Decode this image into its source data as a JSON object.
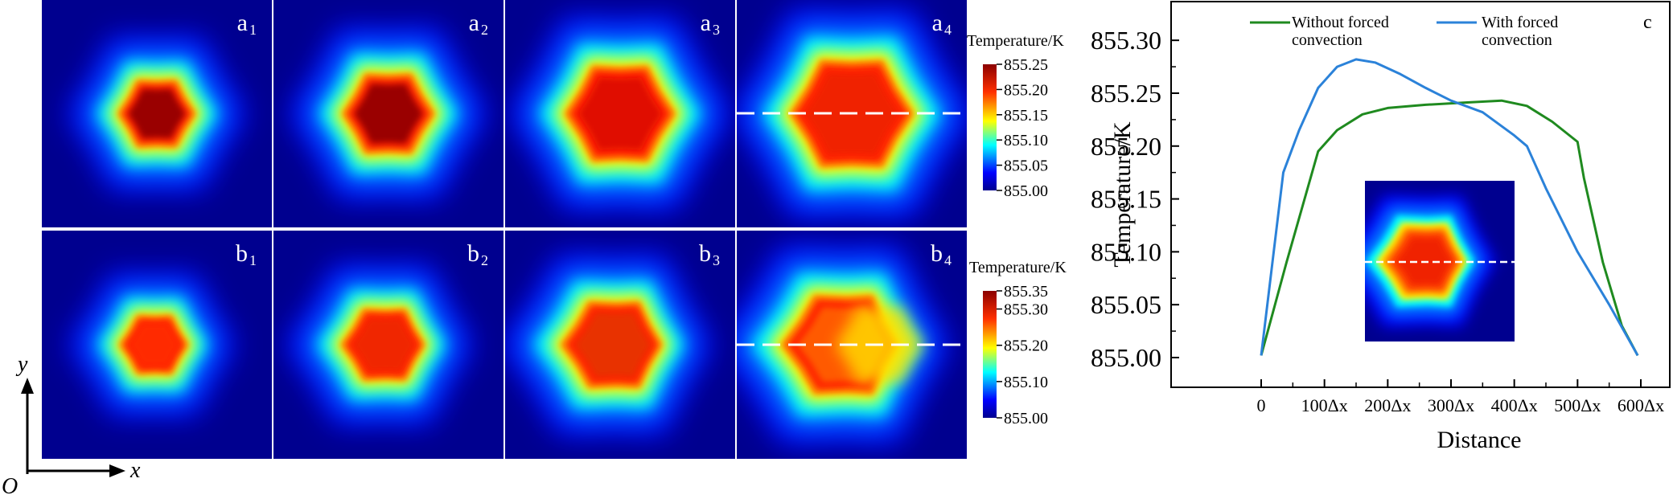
{
  "panels": {
    "row_a": [
      {
        "letter": "a",
        "index": "1",
        "shape": "hexstar",
        "scale": 0.55,
        "skew": 0
      },
      {
        "letter": "a",
        "index": "2",
        "shape": "hexstar",
        "scale": 0.75,
        "skew": 0
      },
      {
        "letter": "a",
        "index": "3",
        "shape": "hexstar",
        "scale": 1.0,
        "skew": 0
      },
      {
        "letter": "a",
        "index": "4",
        "shape": "hexstar",
        "scale": 1.18,
        "skew": 0
      }
    ],
    "row_b": [
      {
        "letter": "b",
        "index": "1",
        "shape": "hexstar",
        "scale": 0.42,
        "skew": 0.15
      },
      {
        "letter": "b",
        "index": "2",
        "shape": "hexstar",
        "scale": 0.62,
        "skew": 0.25
      },
      {
        "letter": "b",
        "index": "3",
        "shape": "hexstar",
        "scale": 0.85,
        "skew": 0.35
      },
      {
        "letter": "b",
        "index": "4",
        "shape": "hexstar",
        "scale": 1.05,
        "skew": 0.45
      }
    ]
  },
  "colorbar_a": {
    "title": "Temperature/K",
    "min": 855.0,
    "max": 855.25,
    "ticks": [
      "855.25",
      "855.20",
      "855.15",
      "855.10",
      "855.05",
      "855.00"
    ]
  },
  "colorbar_b": {
    "title": "Temperature/K",
    "min": 855.0,
    "max": 855.35,
    "ticks": [
      "855.35",
      "855.30",
      "855.20",
      "855.10",
      "855.00"
    ],
    "tick_values": [
      855.35,
      855.3,
      855.2,
      855.1,
      855.0
    ]
  },
  "axes_indicator": {
    "origin": "O",
    "x": "x",
    "y": "y"
  },
  "chart_data": {
    "type": "line",
    "panel_label": "c",
    "xlabel": "Distance",
    "ylabel": "Temperature/K",
    "xlim": [
      0,
      600
    ],
    "ylim": [
      855.0,
      855.31
    ],
    "x_ticks": [
      0,
      100,
      200,
      300,
      400,
      500,
      600
    ],
    "x_tick_labels": [
      "0",
      "100Δx",
      "200Δx",
      "300Δx",
      "400Δx",
      "500Δx",
      "600Δx"
    ],
    "y_ticks": [
      855.0,
      855.05,
      855.1,
      855.15,
      855.2,
      855.25,
      855.3
    ],
    "y_tick_labels": [
      "855.00",
      "855.05",
      "855.10",
      "855.15",
      "855.20",
      "855.25",
      "855.30"
    ],
    "legend_position": "top",
    "series": [
      {
        "name": "Without forced convection",
        "legend_lines": [
          "Without forced",
          "convection"
        ],
        "color": "#1f8a1f",
        "x": [
          0,
          40,
          90,
          120,
          160,
          200,
          260,
          320,
          380,
          420,
          460,
          500,
          510,
          540,
          570,
          595
        ],
        "y": [
          855.002,
          855.09,
          855.195,
          855.215,
          855.23,
          855.236,
          855.239,
          855.241,
          855.243,
          855.238,
          855.223,
          855.204,
          855.17,
          855.09,
          855.03,
          855.002
        ]
      },
      {
        "name": "With forced convection",
        "legend_lines": [
          "With forced",
          "convection"
        ],
        "color": "#2b82d9",
        "x": [
          0,
          35,
          60,
          90,
          120,
          150,
          180,
          220,
          260,
          300,
          350,
          400,
          420,
          450,
          500,
          550,
          595
        ],
        "y": [
          855.002,
          855.175,
          855.215,
          855.255,
          855.275,
          855.282,
          855.279,
          855.268,
          855.255,
          855.243,
          855.232,
          855.21,
          855.2,
          855.16,
          855.1,
          855.05,
          855.002
        ]
      }
    ]
  }
}
